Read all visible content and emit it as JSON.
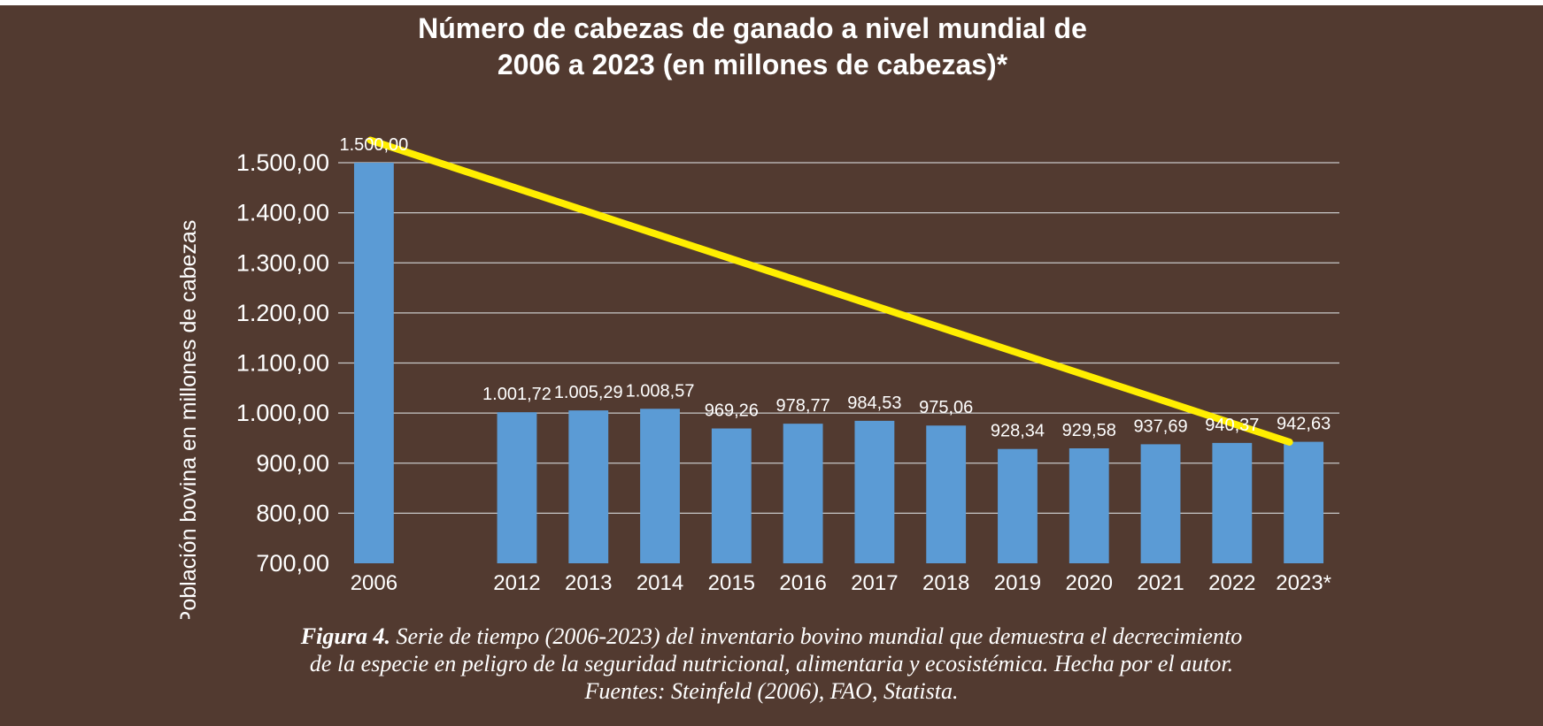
{
  "chart_data": {
    "type": "bar",
    "title_lines": [
      "Número de cabezas de ganado a nivel mundial de",
      "2006 a 2023 (en millones de cabezas)*"
    ],
    "ylabel": "Población bovina en millones de cabezas",
    "xlabel": "",
    "categories": [
      "2006",
      "",
      "2012",
      "2013",
      "2014",
      "2015",
      "2016",
      "2017",
      "2018",
      "2019",
      "2020",
      "2021",
      "2022",
      "2023*"
    ],
    "values": [
      1500.0,
      null,
      1001.72,
      1005.29,
      1008.57,
      969.26,
      978.77,
      984.53,
      975.06,
      928.34,
      929.58,
      937.69,
      940.37,
      942.63
    ],
    "data_labels": [
      "1.500,00",
      "",
      "1.001,72",
      "1.005,29",
      "1.008,57",
      "969,26",
      "978,77",
      "984,53",
      "975,06",
      "928,34",
      "929,58",
      "937,69",
      "940,37",
      "942,63"
    ],
    "ylim": [
      700,
      1500
    ],
    "yticks": [
      700,
      800,
      900,
      1000,
      1100,
      1200,
      1300,
      1400,
      1500
    ],
    "ytick_labels": [
      "700,00",
      "800,00",
      "900,00",
      "1.000,00",
      "1.100,00",
      "1.200,00",
      "1.300,00",
      "1.400,00",
      "1.500,00"
    ],
    "trendline": {
      "start_value": 1545,
      "end_value": 942
    },
    "grid": true,
    "legend": "none",
    "colors": {
      "background": "#523a30",
      "bar": "#5b9bd5",
      "trendline": "#ffee00",
      "text": "#ffffff",
      "grid": "#c8c8c8"
    }
  },
  "caption": {
    "figure_label": "Figura 4.",
    "line1": " Serie de tiempo (2006-2023) del inventario bovino mundial que demuestra el decrecimiento",
    "line2": "de la especie en peligro de la seguridad nutricional, alimentaria y ecosistémica. Hecha por el autor.",
    "line3": "Fuentes: Steinfeld (2006), FAO, Statista."
  }
}
